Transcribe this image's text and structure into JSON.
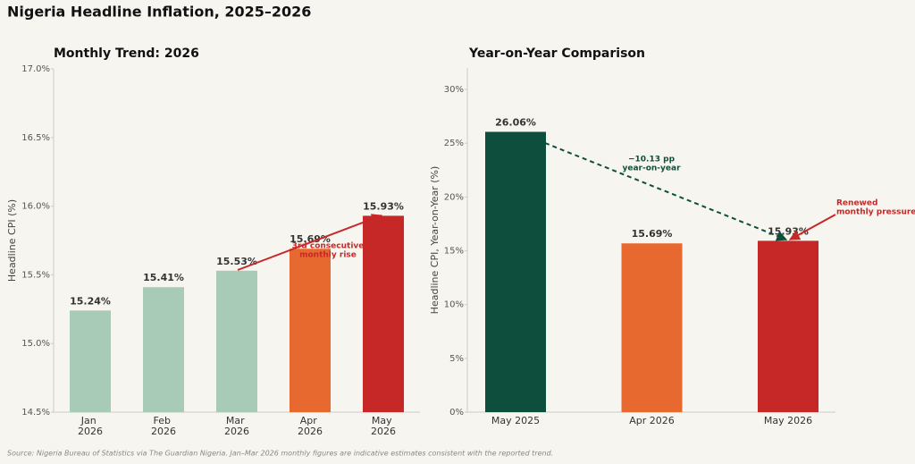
{
  "title": "Nigeria Headline Inflation, 2025–2026",
  "source": "Source: Nigeria Bureau of Statistics via The Guardian Nigeria. Jan–Mar 2026 monthly figures are indicative estimates consistent with the reported trend.",
  "chart_data": [
    {
      "type": "bar",
      "title": "Monthly Trend: 2026",
      "ylabel": "Headline CPI (%)",
      "categories": [
        "Jan 2026",
        "Feb 2026",
        "Mar 2026",
        "Apr 2026",
        "May 2026"
      ],
      "values": [
        15.24,
        15.41,
        15.53,
        15.69,
        15.93
      ],
      "value_labels": [
        "15.24%",
        "15.41%",
        "15.53%",
        "15.69%",
        "15.93%"
      ],
      "colors": [
        "#a8cbb7",
        "#a8cbb7",
        "#a8cbb7",
        "#e8692f",
        "#c62828"
      ],
      "ylim": [
        14.5,
        17.0
      ],
      "yticks": [
        {
          "value": 14.5,
          "label": "14.5%"
        },
        {
          "value": 15.0,
          "label": "15.0%"
        },
        {
          "value": 15.5,
          "label": "15.5%"
        },
        {
          "value": 16.0,
          "label": "16.0%"
        },
        {
          "value": 16.5,
          "label": "16.5%"
        },
        {
          "value": 17.0,
          "label": "17.0%"
        }
      ],
      "grid": false,
      "annotations": [
        {
          "lines": [
            "3rd consecutive",
            "monthly rise"
          ],
          "color": "#c62828"
        }
      ]
    },
    {
      "type": "bar",
      "title": "Year-on-Year Comparison",
      "ylabel": "Headline CPI, Year-on-Year (%)",
      "categories": [
        "May 2025",
        "Apr 2026",
        "May 2026"
      ],
      "values": [
        26.06,
        15.69,
        15.93
      ],
      "value_labels": [
        "26.06%",
        "15.69%",
        "15.93%"
      ],
      "colors": [
        "#0d4f3c",
        "#e8692f",
        "#c62828"
      ],
      "ylim": [
        0,
        32
      ],
      "yticks": [
        {
          "value": 0,
          "label": "0%"
        },
        {
          "value": 5,
          "label": "5%"
        },
        {
          "value": 10,
          "label": "10%"
        },
        {
          "value": 15,
          "label": "15%"
        },
        {
          "value": 20,
          "label": "20%"
        },
        {
          "value": 25,
          "label": "25%"
        },
        {
          "value": 30,
          "label": "30%"
        }
      ],
      "grid": false,
      "annotations": [
        {
          "lines": [
            "−10.13 pp",
            "year-on-year"
          ],
          "color": "#0d4f3c"
        },
        {
          "lines": [
            "Renewed",
            "monthly pressure"
          ],
          "color": "#c62828"
        }
      ]
    }
  ]
}
